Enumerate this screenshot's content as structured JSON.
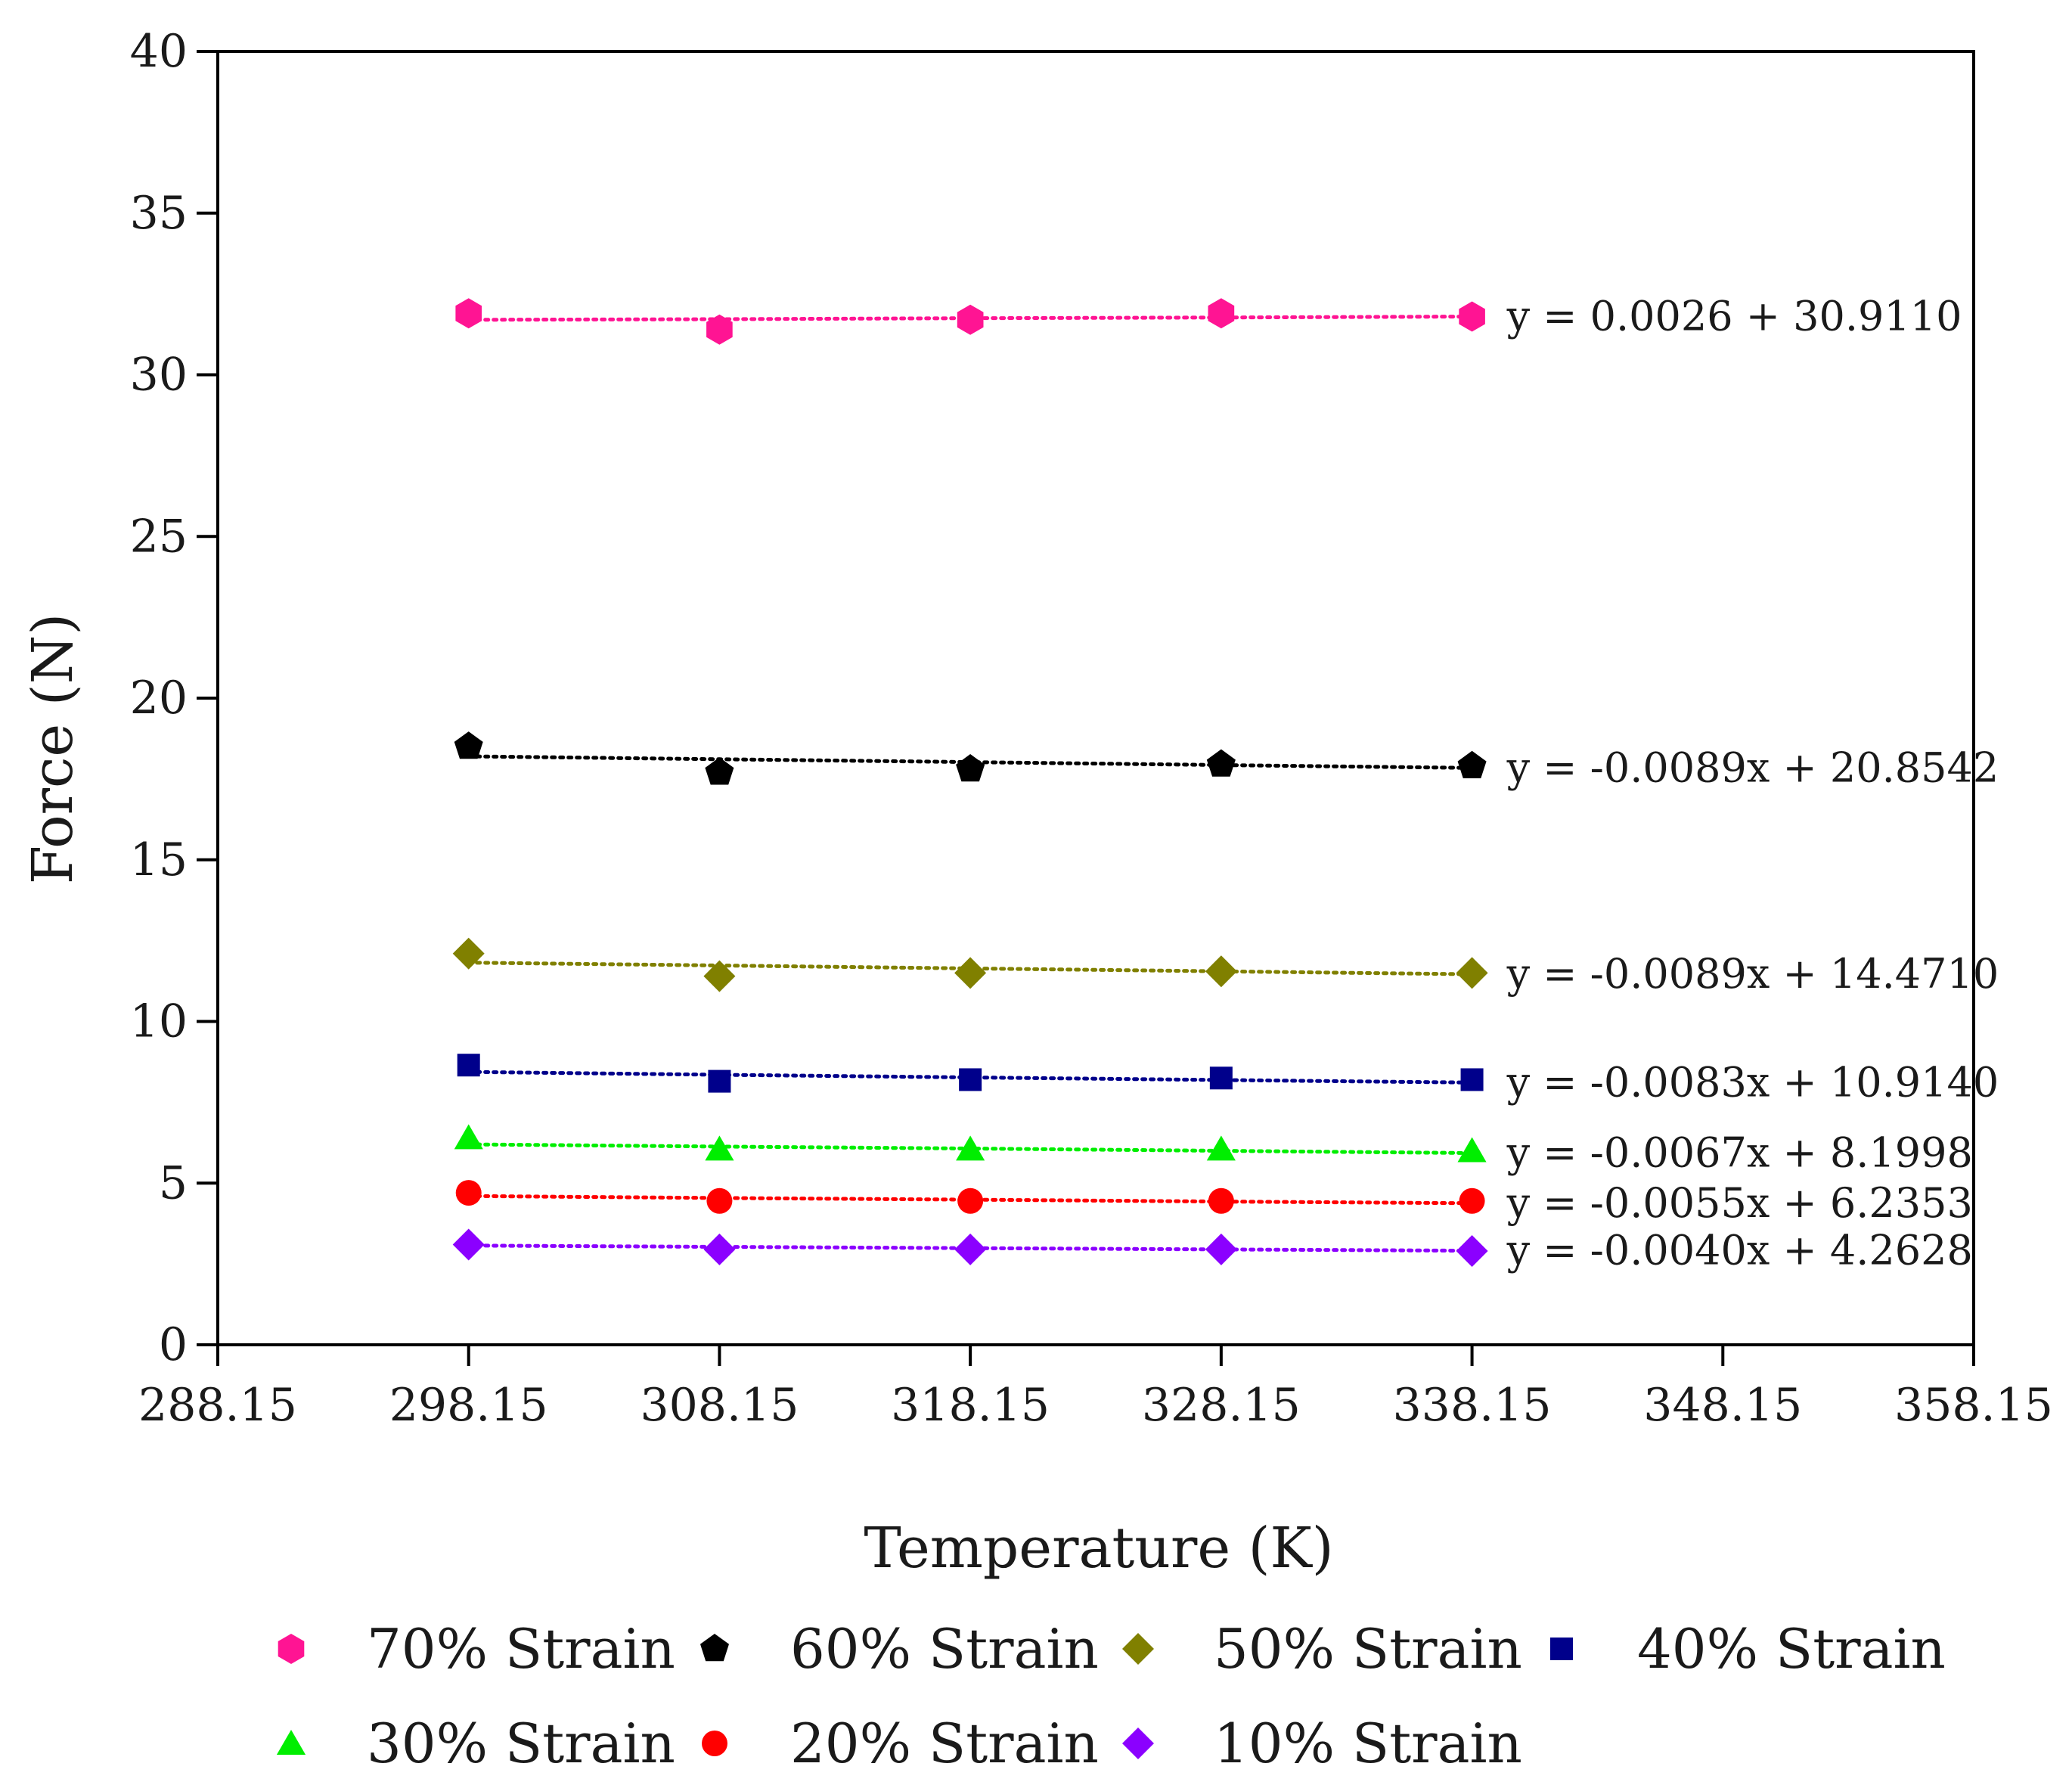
{
  "chart_data": {
    "type": "scatter",
    "title": "",
    "xlabel": "Temperature (K)",
    "ylabel": "Force (N)",
    "xlim": [
      288.15,
      358.15
    ],
    "ylim": [
      0,
      40
    ],
    "x_ticks": [
      "288.15",
      "298.15",
      "308.15",
      "318.15",
      "328.15",
      "338.15",
      "348.15",
      "358.15"
    ],
    "y_ticks": [
      "0",
      "5",
      "10",
      "15",
      "20",
      "25",
      "30",
      "35",
      "40"
    ],
    "x": [
      298.15,
      308.15,
      318.15,
      328.15,
      338.15
    ],
    "grid": false,
    "legend_position": "bottom",
    "series": [
      {
        "name": "70% Strain",
        "marker": "hexagon",
        "color": "#ff1493",
        "values": [
          31.9,
          31.4,
          31.7,
          31.9,
          31.8
        ],
        "trend": [
          31.7,
          31.72,
          31.75,
          31.77,
          31.8
        ],
        "equation": "y = 0.0026 + 30.9110"
      },
      {
        "name": "60% Strain",
        "marker": "pentagon",
        "color": "#000000",
        "values": [
          18.5,
          17.7,
          17.8,
          17.95,
          17.9
        ],
        "trend": [
          18.2,
          18.11,
          18.02,
          17.93,
          17.84
        ],
        "equation": "y = -0.0089x + 20.8542"
      },
      {
        "name": "50% Strain",
        "marker": "diamond",
        "color": "#808000",
        "values": [
          12.1,
          11.4,
          11.5,
          11.55,
          11.5
        ],
        "trend": [
          11.82,
          11.73,
          11.64,
          11.55,
          11.46
        ],
        "equation": "y = -0.0089x + 14.4710"
      },
      {
        "name": "40% Strain",
        "marker": "square",
        "color": "#00008b",
        "values": [
          8.65,
          8.15,
          8.2,
          8.25,
          8.2
        ],
        "trend": [
          8.44,
          8.35,
          8.27,
          8.19,
          8.11
        ],
        "equation": "y = -0.0083x + 10.9140"
      },
      {
        "name": "30% Strain",
        "marker": "triangle",
        "color": "#00ee00",
        "values": [
          6.4,
          6.05,
          6.05,
          6.05,
          6.0
        ],
        "trend": [
          6.2,
          6.13,
          6.07,
          6.0,
          5.93
        ],
        "equation": "y = -0.0067x + 8.1998"
      },
      {
        "name": "20% Strain",
        "marker": "circle",
        "color": "#ff0000",
        "values": [
          4.7,
          4.45,
          4.45,
          4.45,
          4.45
        ],
        "trend": [
          4.6,
          4.54,
          4.49,
          4.43,
          4.38
        ],
        "equation": "y = -0.0055x + 6.2353"
      },
      {
        "name": "10% Strain",
        "marker": "diamond",
        "color": "#8b00ff",
        "values": [
          3.1,
          2.95,
          2.95,
          2.95,
          2.9
        ],
        "trend": [
          3.07,
          3.03,
          2.99,
          2.95,
          2.91
        ],
        "equation": "y = -0.0040x + 4.2628"
      }
    ]
  }
}
